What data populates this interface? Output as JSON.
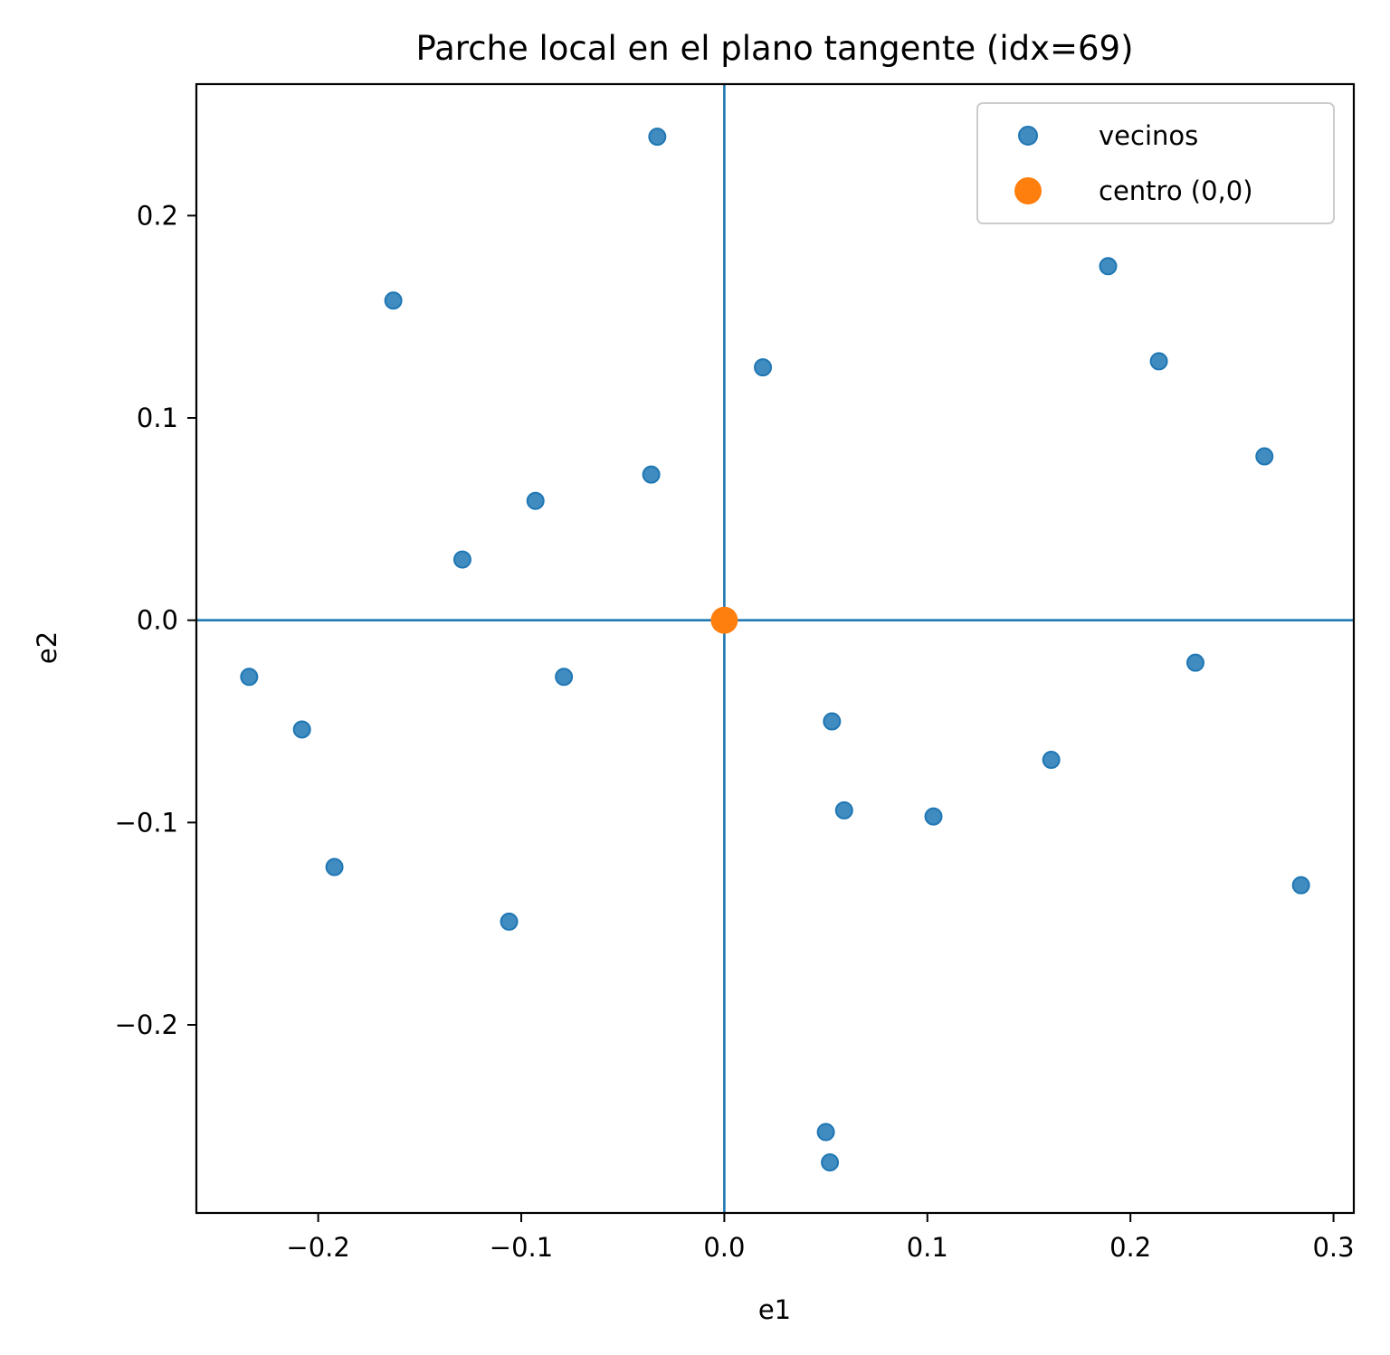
{
  "chart_data": {
    "type": "scatter",
    "title": "Parche local en el plano tangente (idx=69)",
    "xlabel": "e1",
    "ylabel": "e2",
    "xlim": [
      -0.26,
      0.31
    ],
    "ylim": [
      -0.293,
      0.265
    ],
    "xticks": [
      {
        "value": -0.2,
        "label": "−0.2"
      },
      {
        "value": -0.1,
        "label": "−0.1"
      },
      {
        "value": 0.0,
        "label": "0.0"
      },
      {
        "value": 0.1,
        "label": "0.1"
      },
      {
        "value": 0.2,
        "label": "0.2"
      },
      {
        "value": 0.3,
        "label": "0.3"
      }
    ],
    "yticks": [
      {
        "value": -0.2,
        "label": "−0.2"
      },
      {
        "value": -0.1,
        "label": "−0.1"
      },
      {
        "value": 0.0,
        "label": "0.0"
      },
      {
        "value": 0.1,
        "label": "0.1"
      },
      {
        "value": 0.2,
        "label": "0.2"
      }
    ],
    "grid": false,
    "reference_lines": [
      {
        "orientation": "vertical",
        "value": 0.0,
        "color": "#1f77b4"
      },
      {
        "orientation": "horizontal",
        "value": 0.0,
        "color": "#1f77b4"
      }
    ],
    "legend_position": "top-right",
    "series": [
      {
        "name": "vecinos",
        "color": "#1f77b4",
        "marker": "circle-small",
        "points": [
          {
            "x": -0.033,
            "y": 0.239
          },
          {
            "x": -0.163,
            "y": 0.158
          },
          {
            "x": 0.019,
            "y": 0.125
          },
          {
            "x": 0.189,
            "y": 0.175
          },
          {
            "x": 0.214,
            "y": 0.128
          },
          {
            "x": 0.266,
            "y": 0.081
          },
          {
            "x": -0.036,
            "y": 0.072
          },
          {
            "x": -0.093,
            "y": 0.059
          },
          {
            "x": -0.129,
            "y": 0.03
          },
          {
            "x": -0.234,
            "y": -0.028
          },
          {
            "x": -0.079,
            "y": -0.028
          },
          {
            "x": -0.208,
            "y": -0.054
          },
          {
            "x": 0.053,
            "y": -0.05
          },
          {
            "x": 0.232,
            "y": -0.021
          },
          {
            "x": 0.161,
            "y": -0.069
          },
          {
            "x": 0.059,
            "y": -0.094
          },
          {
            "x": 0.103,
            "y": -0.097
          },
          {
            "x": -0.192,
            "y": -0.122
          },
          {
            "x": -0.106,
            "y": -0.149
          },
          {
            "x": 0.284,
            "y": -0.131
          },
          {
            "x": 0.05,
            "y": -0.253
          },
          {
            "x": 0.052,
            "y": -0.268
          }
        ]
      },
      {
        "name": "centro (0,0)",
        "color": "#ff7f0e",
        "marker": "circle-large",
        "points": [
          {
            "x": 0.0,
            "y": 0.0
          }
        ]
      }
    ]
  }
}
